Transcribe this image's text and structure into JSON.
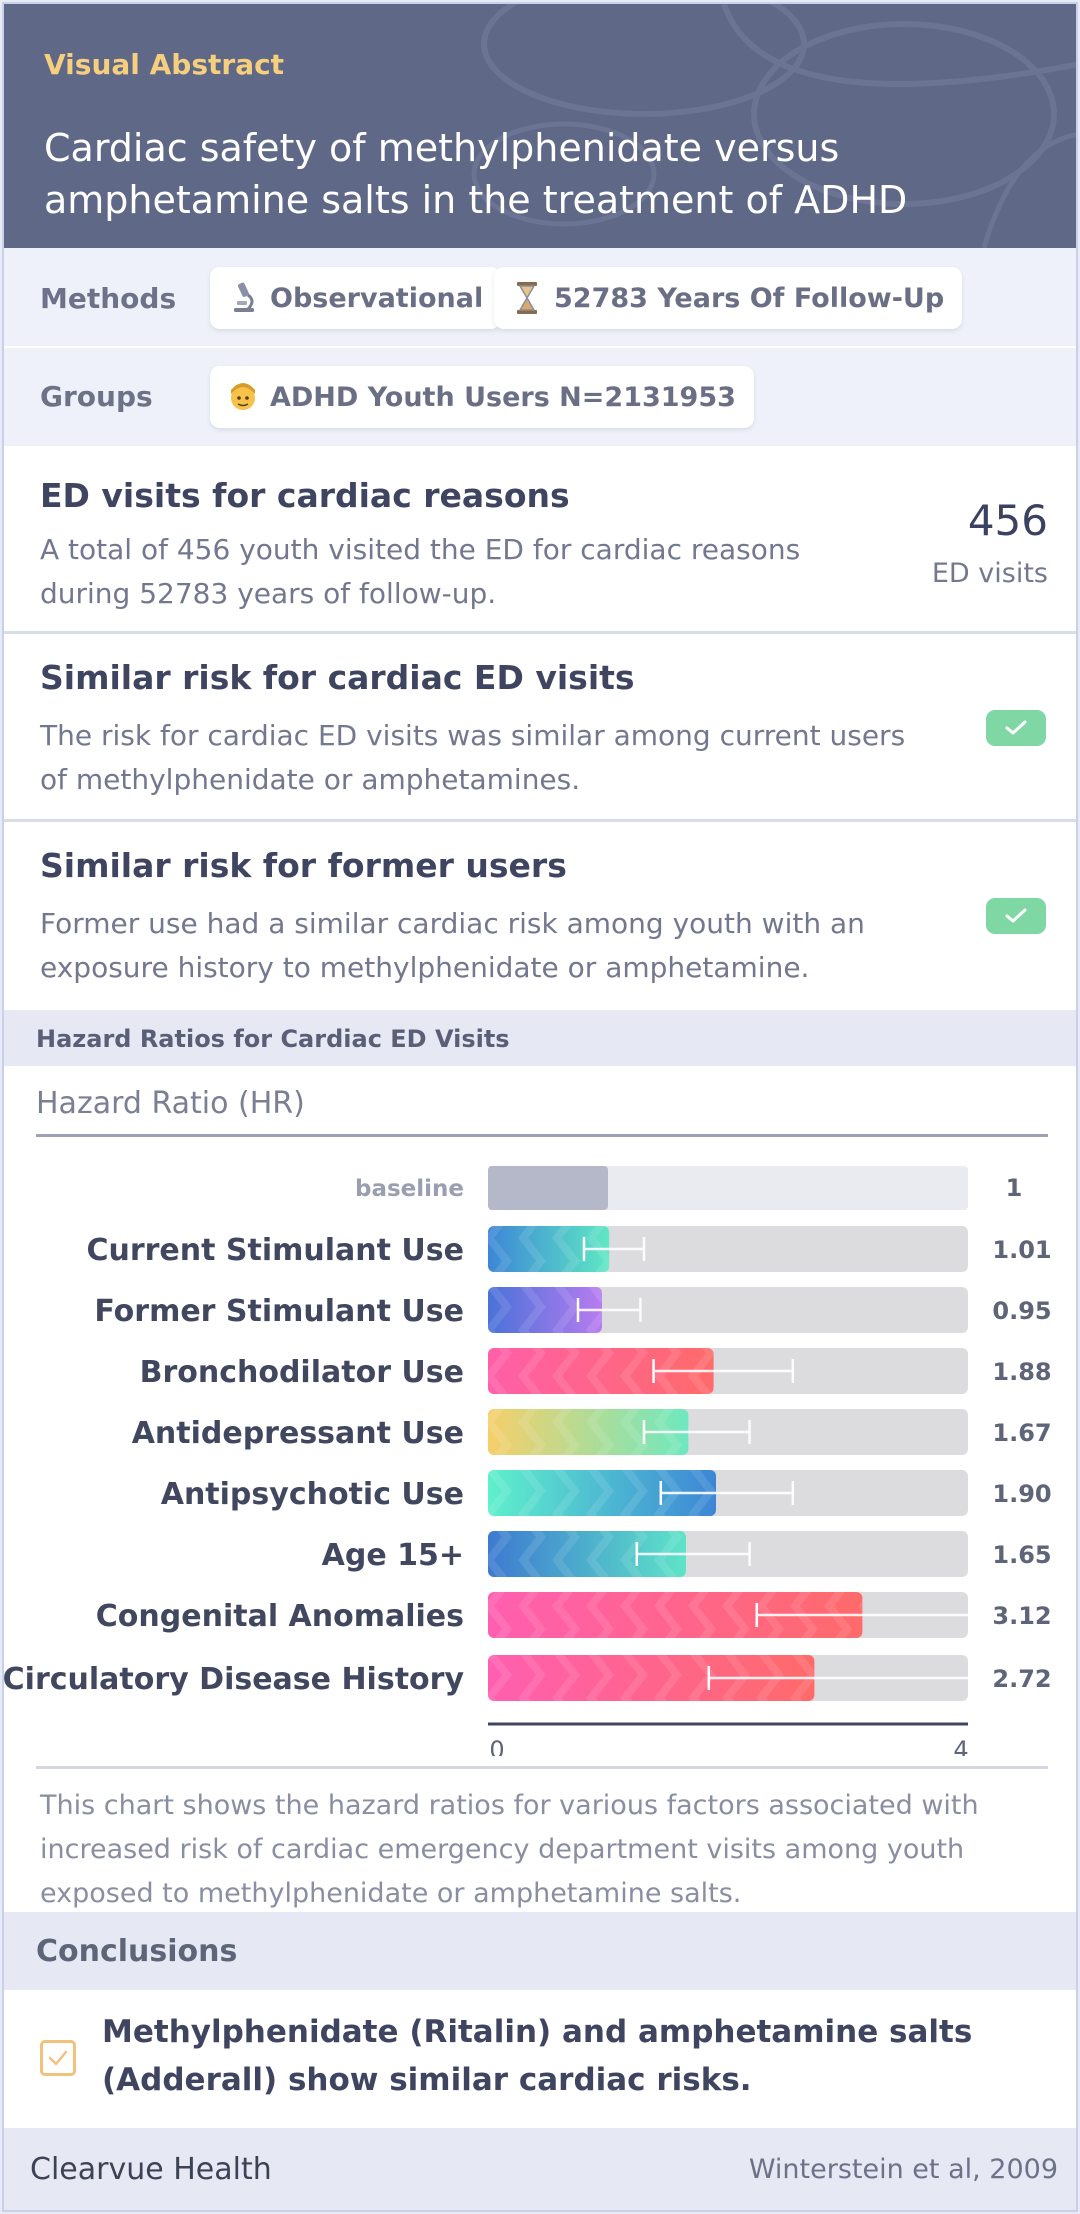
{
  "header": {
    "eyebrow": "Visual Abstract",
    "title": "Cardiac safety of methylphenidate versus amphetamine salts in the treatment of ADHD"
  },
  "methods": {
    "label": "Methods",
    "chips": [
      {
        "icon": "microscope-icon",
        "text": "Observational"
      },
      {
        "icon": "hourglass-icon",
        "text": "52783 Years Of Follow-Up"
      }
    ]
  },
  "groups": {
    "label": "Groups",
    "chips": [
      {
        "icon": "person-icon",
        "text": "ADHD Youth Users N=2131953"
      }
    ]
  },
  "findings": [
    {
      "title": "ED visits for cardiac reasons",
      "text": "A total of 456 youth visited the ED for cardiac reasons during 52783 years of follow-up.",
      "stat_value": "456",
      "stat_label": "ED visits"
    },
    {
      "title": "Similar risk for cardiac ED visits",
      "text": "The risk for cardiac ED visits was similar among current users of methylphenidate or amphetamines.",
      "icon": "check-icon"
    },
    {
      "title": "Similar risk for former users",
      "text": "Former use had a similar cardiac risk among youth with an exposure history to methylphenidate or amphetamine.",
      "icon": "check-icon"
    }
  ],
  "chart_section_title": "Hazard Ratios for Cardiac ED Visits",
  "chart_data": {
    "type": "bar",
    "orientation": "horizontal",
    "ylabel": "Hazard Ratio (HR)",
    "xlim": [
      0,
      4
    ],
    "x_ticks": [
      "0",
      "4"
    ],
    "baseline": {
      "label": "baseline",
      "value": 1,
      "value_label": "1"
    },
    "categories": [
      "Current Stimulant Use",
      "Former Stimulant Use",
      "Bronchodilator Use",
      "Antidepressant Use",
      "Antipsychotic Use",
      "Age 15+",
      "Congenital Anomalies",
      "Circulatory Disease History"
    ],
    "values": [
      1.01,
      0.95,
      1.88,
      1.67,
      1.9,
      1.65,
      3.12,
      2.72
    ],
    "value_labels": [
      "1.01",
      "0.95",
      "1.88",
      "1.67",
      "1.90",
      "1.65",
      "3.12",
      "2.72"
    ],
    "ci_low": [
      0.8,
      0.75,
      1.38,
      1.3,
      1.44,
      1.24,
      2.24,
      1.84
    ],
    "ci_high": [
      1.3,
      1.27,
      2.54,
      2.18,
      2.54,
      2.18,
      4.0,
      4.0
    ],
    "bar_gradients": [
      [
        "#3d86d6",
        "#5fe8c4"
      ],
      [
        "#4a72d8",
        "#b77cf0"
      ],
      [
        "#ff5fa8",
        "#ff6b6b"
      ],
      [
        "#f6cf6a",
        "#6ee8c0"
      ],
      [
        "#5ff0cc",
        "#3d86d6"
      ],
      [
        "#3d7ad0",
        "#5ee4c8"
      ],
      [
        "#ff5fb0",
        "#ff6a6a"
      ],
      [
        "#ff5fb0",
        "#ff6a6a"
      ]
    ],
    "caption": "This chart shows the hazard ratios for various factors associated with increased risk of cardiac emergency department visits among youth exposed to methylphenidate or amphetamine salts."
  },
  "conclusions": {
    "title": "Conclusions",
    "items": [
      "Methylphenidate (Ritalin) and amphetamine salts (Adderall) show similar cardiac risks."
    ]
  },
  "footer": {
    "brand": "Clearvue Health",
    "citation": "Winterstein et al, 2009"
  }
}
